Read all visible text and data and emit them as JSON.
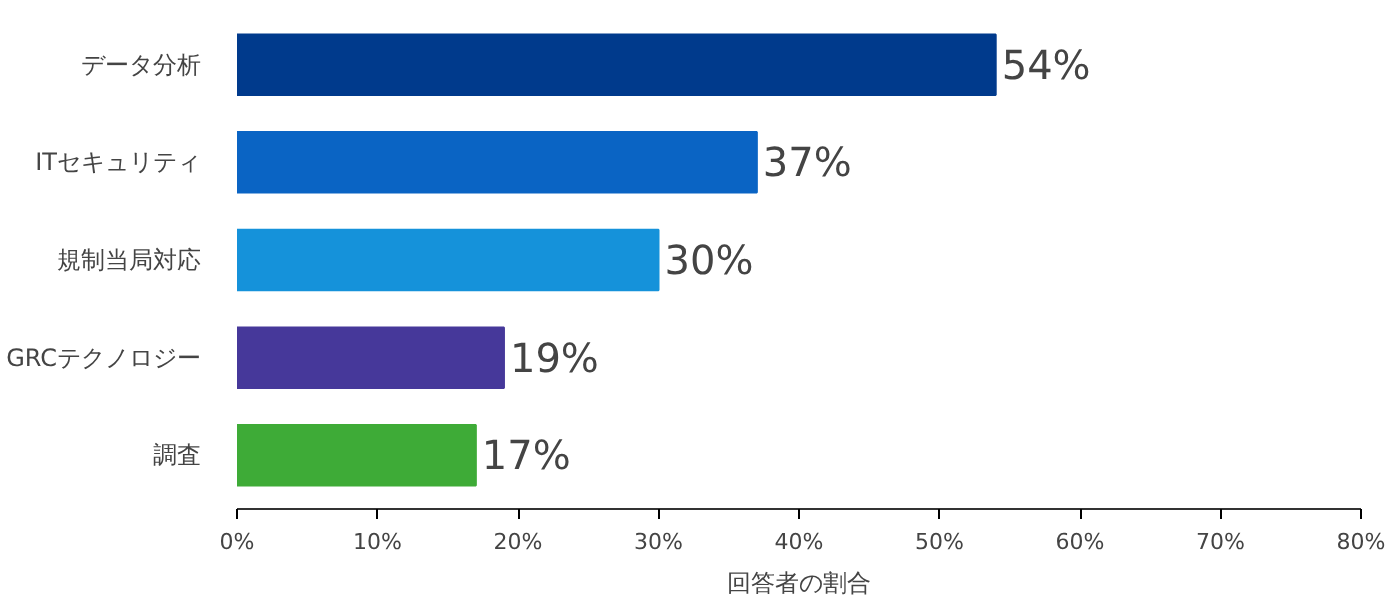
{
  "chart_data": {
    "type": "bar",
    "orientation": "horizontal",
    "categories": [
      "データ分析",
      "ITセキュリティ",
      "規制当局対応",
      "GRCテクノロジー",
      "調査"
    ],
    "values": [
      54,
      37,
      30,
      19,
      17
    ],
    "colors": [
      "#003a8c",
      "#0a64c4",
      "#1592da",
      "#46389a",
      "#3eab37"
    ],
    "value_labels": [
      "54%",
      "37%",
      "30%",
      "19%",
      "17%"
    ],
    "xlabel": "回答者の割合",
    "xlim": [
      0,
      80
    ],
    "xticks": [
      {
        "value": 0,
        "label": "0%"
      },
      {
        "value": 10,
        "label": "10%"
      },
      {
        "value": 20,
        "label": "20%"
      },
      {
        "value": 30,
        "label": "30%"
      },
      {
        "value": 40,
        "label": "40%"
      },
      {
        "value": 50,
        "label": "50%"
      },
      {
        "value": 60,
        "label": "60%"
      },
      {
        "value": 70,
        "label": "70%"
      },
      {
        "value": 80,
        "label": "80%"
      }
    ],
    "grid": false
  }
}
